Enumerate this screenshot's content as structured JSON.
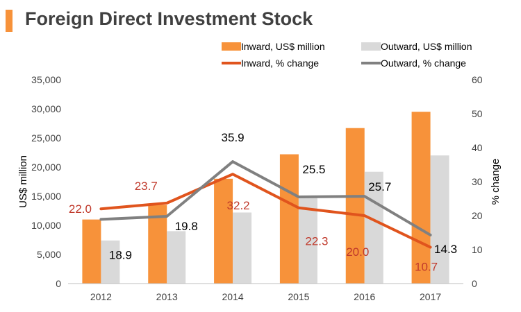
{
  "chart_data": {
    "type": "bar",
    "title": "Foreign Direct Investment Stock",
    "categories": [
      "2012",
      "2013",
      "2014",
      "2015",
      "2016",
      "2017"
    ],
    "ylabel": "US$ million",
    "y2label": "% change",
    "ylim": [
      0,
      35000
    ],
    "y2lim": [
      0,
      60
    ],
    "yticks": [
      "0",
      "5,000",
      "10,000",
      "15,000",
      "20,000",
      "25,000",
      "30,000",
      "35,000"
    ],
    "y2ticks": [
      "0",
      "10",
      "20",
      "30",
      "40",
      "50",
      "60"
    ],
    "bar_series": [
      {
        "name": "Inward, US$ million",
        "color": "#f7923a",
        "values": [
          11000,
          13500,
          18000,
          22200,
          26700,
          29500
        ]
      },
      {
        "name": "Outward, US$ million",
        "color": "#d9d9d9",
        "values": [
          7400,
          9000,
          12200,
          15000,
          19200,
          22000
        ]
      }
    ],
    "line_series": [
      {
        "name": "Inward, % change",
        "color": "#e0541d",
        "label_color": "#c0392b",
        "values": [
          22.0,
          23.7,
          32.2,
          22.3,
          20.0,
          10.7
        ],
        "labels": [
          "22.0",
          "23.7",
          "32.2",
          "22.3",
          "20.0",
          "10.7"
        ]
      },
      {
        "name": "Outward, % change",
        "color": "#808080",
        "label_color": "#000000",
        "values": [
          18.9,
          19.8,
          35.9,
          25.5,
          25.7,
          14.3
        ],
        "labels": [
          "18.9",
          "19.8",
          "35.9",
          "25.5",
          "25.7",
          "14.3"
        ]
      }
    ],
    "legend_position": "top-right",
    "grid": false
  }
}
